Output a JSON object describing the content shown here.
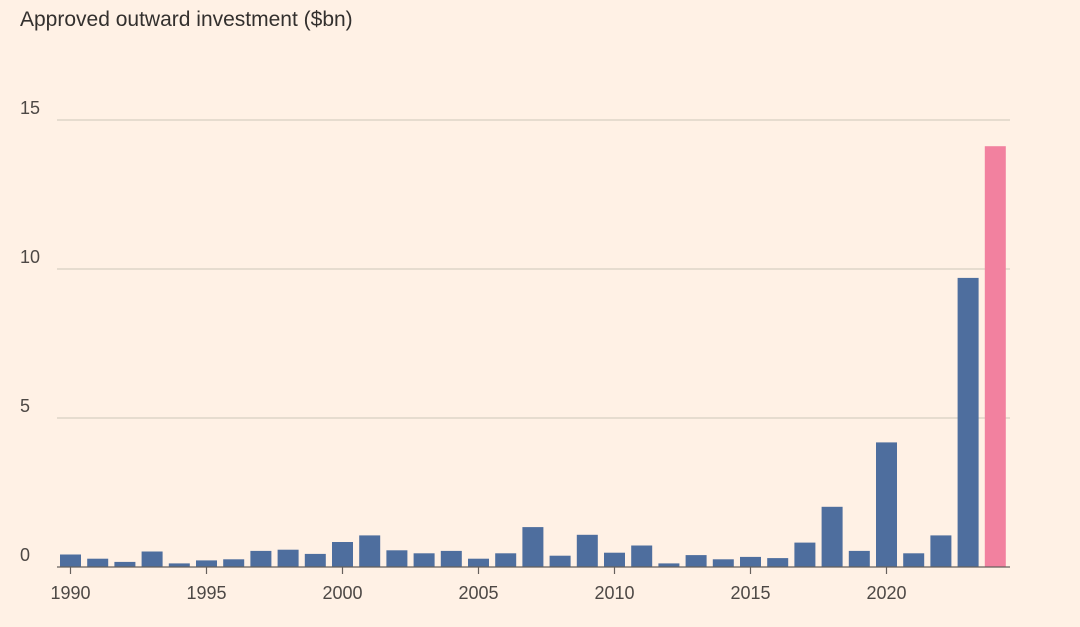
{
  "chart_data": {
    "type": "bar",
    "title": "Approved outward investment ($bn)",
    "xlabel": "",
    "ylabel": "",
    "ylim": [
      0,
      15
    ],
    "yticks": [
      0,
      5,
      10,
      15
    ],
    "xticks": [
      1990,
      1995,
      2000,
      2005,
      2010,
      2015,
      2020
    ],
    "grid": true,
    "colors": {
      "default": "#4E6E9E",
      "highlight": "#F2819F"
    },
    "highlight_category": 2024,
    "categories": [
      1990,
      1991,
      1992,
      1993,
      1994,
      1995,
      1996,
      1997,
      1998,
      1999,
      2000,
      2001,
      2002,
      2003,
      2004,
      2005,
      2006,
      2007,
      2008,
      2009,
      2010,
      2011,
      2012,
      2013,
      2014,
      2015,
      2016,
      2017,
      2018,
      2019,
      2020,
      2021,
      2022,
      2023,
      2024
    ],
    "values": [
      0.42,
      0.28,
      0.17,
      0.52,
      0.12,
      0.22,
      0.26,
      0.54,
      0.58,
      0.44,
      0.84,
      1.06,
      0.56,
      0.46,
      0.54,
      0.28,
      0.46,
      1.34,
      0.38,
      1.08,
      0.48,
      0.72,
      0.12,
      0.4,
      0.26,
      0.34,
      0.3,
      0.82,
      2.02,
      0.54,
      4.18,
      0.46,
      1.06,
      9.7,
      14.12
    ]
  }
}
